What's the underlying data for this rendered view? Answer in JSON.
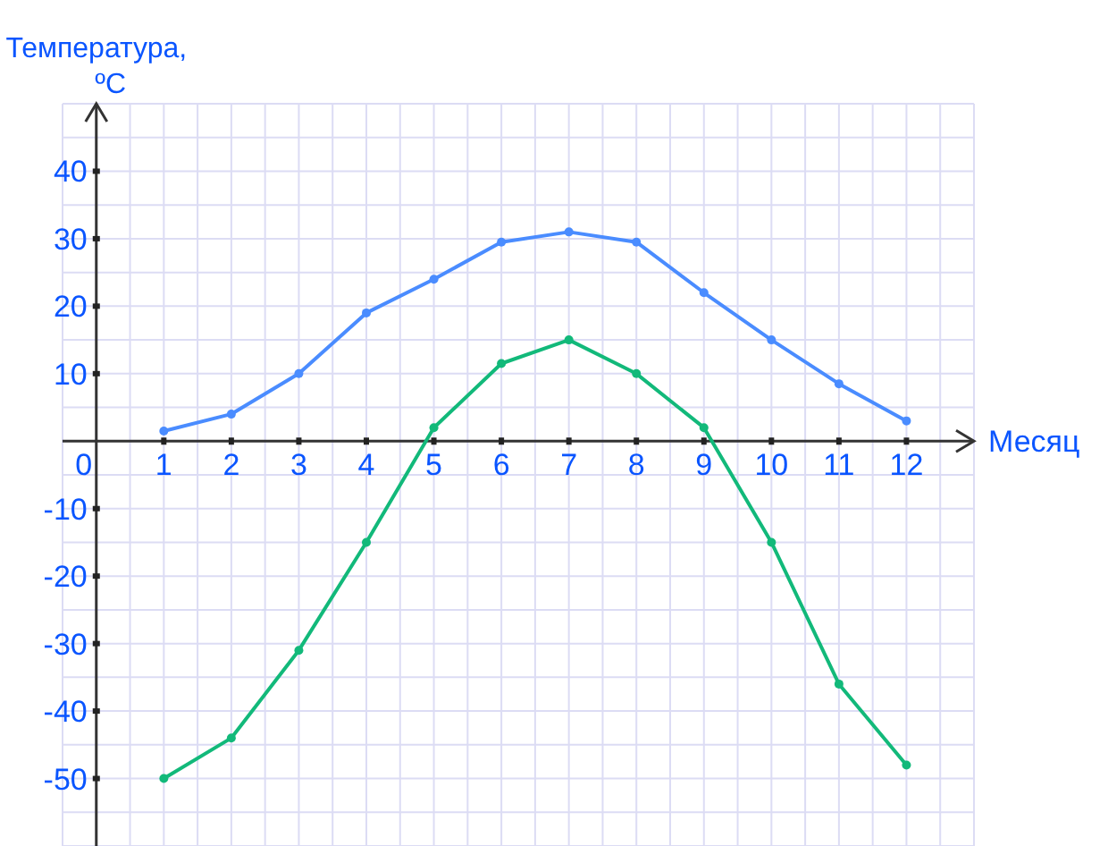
{
  "chart_data": {
    "type": "line",
    "xlabel": "Месяц",
    "ylabel": "Температура, ºC",
    "x": [
      1,
      2,
      3,
      4,
      5,
      6,
      7,
      8,
      9,
      10,
      11,
      12
    ],
    "series": [
      {
        "color": "#4a8cff",
        "values": [
          1.5,
          4,
          10,
          19,
          24,
          29.5,
          31,
          29.5,
          22,
          15,
          8.5,
          3
        ]
      },
      {
        "color": "#12b97a",
        "values": [
          -50,
          -44,
          -31,
          -15,
          2,
          11.5,
          15,
          10,
          2,
          -15,
          -36,
          -48
        ]
      }
    ],
    "xlim": [
      -0.5,
      13
    ],
    "ylim": [
      -60,
      50
    ],
    "xticks": [
      0,
      1,
      2,
      3,
      4,
      5,
      6,
      7,
      8,
      9,
      10,
      11,
      12
    ],
    "yticks": [
      -50,
      -40,
      -30,
      -20,
      -10,
      10,
      20,
      30,
      40
    ],
    "grid": true,
    "marker": "circle",
    "line_style": "solid"
  }
}
